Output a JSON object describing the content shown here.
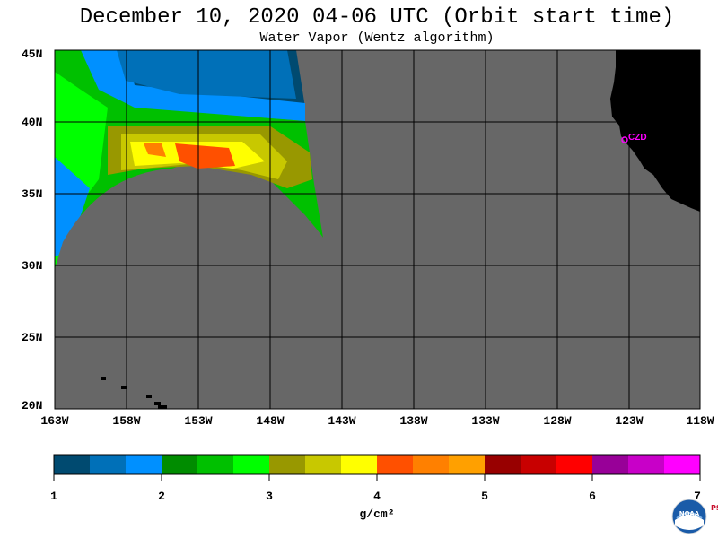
{
  "title": "December 10, 2020  04-06 UTC  (Orbit start time)",
  "subtitle": "Water Vapor (Wentz algorithm)",
  "map": {
    "lat_labels": [
      "45N",
      "40N",
      "35N",
      "30N",
      "25N",
      "20N"
    ],
    "lon_labels": [
      "163W",
      "158W",
      "153W",
      "148W",
      "143W",
      "138W",
      "133W",
      "128W",
      "123W",
      "118W"
    ],
    "land_color": "#000000",
    "no_data_color": "#676767",
    "station_label": "CZD",
    "station_color": "#ff00ff"
  },
  "colorbar": {
    "tick_labels": [
      "1",
      "2",
      "3",
      "4",
      "5",
      "6",
      "7"
    ],
    "unit_label": "g/cm²",
    "colors": [
      "#004a70",
      "#0070b8",
      "#0090ff",
      "#008c00",
      "#00c000",
      "#00ff00",
      "#989800",
      "#c8c800",
      "#ffff00",
      "#ff5000",
      "#ff8000",
      "#ffa000",
      "#980000",
      "#c80000",
      "#ff0000",
      "#980098",
      "#c800c8",
      "#ff00ff"
    ]
  },
  "logo": {
    "name": "NOAA",
    "side_text": "PSL"
  }
}
